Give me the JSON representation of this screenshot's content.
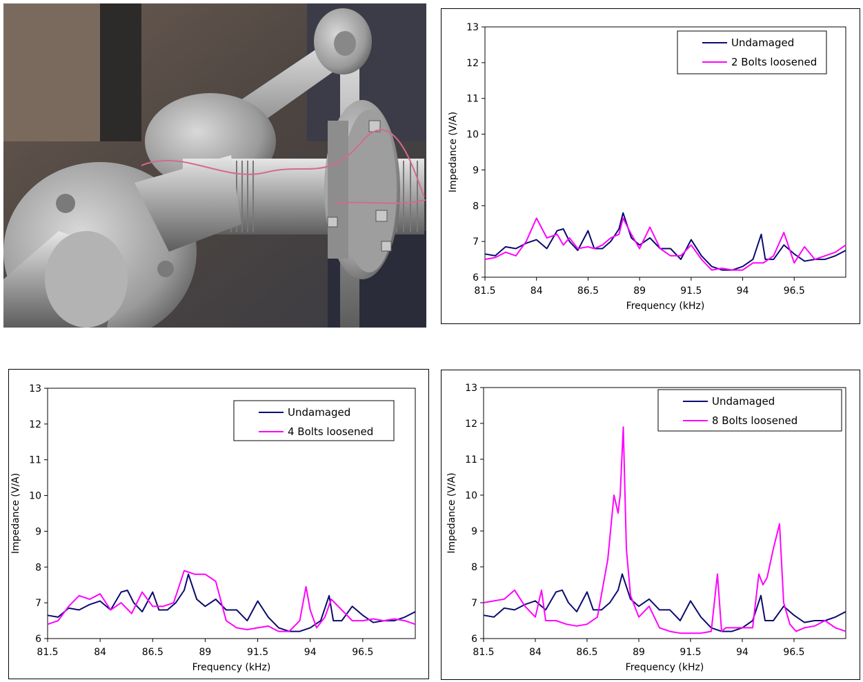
{
  "colors": {
    "undamaged": "#0a0a6e",
    "loosened": "#ff00ff",
    "axis": "#000000"
  },
  "photo": {
    "description": "pipe-flange-assembly"
  },
  "chart_data": [
    {
      "type": "line",
      "title": "",
      "xlabel": "Frequency (kHz)",
      "ylabel": "Impedance (V/A)",
      "xlim": [
        81.5,
        99
      ],
      "ylim": [
        6,
        13
      ],
      "xticks": [
        "81.5",
        "84",
        "86.5",
        "89",
        "91.5",
        "94",
        "96.5"
      ],
      "yticks": [
        "6",
        "7",
        "8",
        "9",
        "10",
        "11",
        "12",
        "13"
      ],
      "legend_position": "top-right",
      "series": [
        {
          "name": "Undamaged",
          "color": "#0a0a6e",
          "x": [
            81.5,
            82,
            82.5,
            83,
            83.5,
            84,
            84.5,
            85,
            85.3,
            85.6,
            86,
            86.5,
            86.8,
            87.2,
            87.6,
            88,
            88.2,
            88.6,
            89,
            89.5,
            90,
            90.5,
            91,
            91.5,
            92,
            92.5,
            93,
            93.5,
            94,
            94.5,
            94.9,
            95.1,
            95.5,
            96,
            96.5,
            97,
            97.5,
            98,
            98.5,
            99
          ],
          "y": [
            6.65,
            6.6,
            6.85,
            6.8,
            6.95,
            7.05,
            6.8,
            7.3,
            7.35,
            7.0,
            6.75,
            7.3,
            6.8,
            6.8,
            7.0,
            7.35,
            7.8,
            7.1,
            6.9,
            7.1,
            6.8,
            6.8,
            6.5,
            7.05,
            6.6,
            6.3,
            6.2,
            6.2,
            6.3,
            6.5,
            7.2,
            6.5,
            6.5,
            6.9,
            6.65,
            6.45,
            6.5,
            6.5,
            6.6,
            6.75
          ]
        },
        {
          "name": "2 Bolts loosened",
          "color": "#ff00ff",
          "x": [
            81.5,
            82,
            82.5,
            83,
            83.5,
            84,
            84.5,
            85,
            85.3,
            85.6,
            86,
            86.5,
            86.8,
            87.2,
            87.6,
            88,
            88.2,
            88.6,
            89,
            89.5,
            90,
            90.5,
            91,
            91.5,
            92,
            92.5,
            93,
            93.5,
            94,
            94.5,
            95,
            95.5,
            96,
            96.5,
            97,
            97.5,
            98,
            98.5,
            99
          ],
          "y": [
            6.5,
            6.55,
            6.7,
            6.6,
            7.0,
            7.65,
            7.1,
            7.2,
            6.9,
            7.1,
            6.8,
            6.85,
            6.8,
            6.9,
            7.1,
            7.2,
            7.65,
            7.2,
            6.8,
            7.4,
            6.8,
            6.6,
            6.6,
            6.9,
            6.5,
            6.2,
            6.25,
            6.2,
            6.2,
            6.4,
            6.4,
            6.6,
            7.25,
            6.4,
            6.85,
            6.5,
            6.6,
            6.7,
            6.9
          ]
        }
      ]
    },
    {
      "type": "line",
      "title": "",
      "xlabel": "Frequency (kHz)",
      "ylabel": "Impedance (V/A)",
      "xlim": [
        81.5,
        99
      ],
      "ylim": [
        6,
        13
      ],
      "xticks": [
        "81.5",
        "84",
        "86.5",
        "89",
        "91.5",
        "94",
        "96.5"
      ],
      "yticks": [
        "6",
        "7",
        "8",
        "9",
        "10",
        "11",
        "12",
        "13"
      ],
      "legend_position": "top-right",
      "series": [
        {
          "name": "Undamaged",
          "color": "#0a0a6e",
          "x": [
            81.5,
            82,
            82.5,
            83,
            83.5,
            84,
            84.5,
            85,
            85.3,
            85.6,
            86,
            86.5,
            86.8,
            87.2,
            87.6,
            88,
            88.2,
            88.6,
            89,
            89.5,
            90,
            90.5,
            91,
            91.5,
            92,
            92.5,
            93,
            93.5,
            94,
            94.5,
            94.9,
            95.1,
            95.5,
            96,
            96.5,
            97,
            97.5,
            98,
            98.5,
            99
          ],
          "y": [
            6.65,
            6.6,
            6.85,
            6.8,
            6.95,
            7.05,
            6.8,
            7.3,
            7.35,
            7.0,
            6.75,
            7.3,
            6.8,
            6.8,
            7.0,
            7.35,
            7.8,
            7.1,
            6.9,
            7.1,
            6.8,
            6.8,
            6.5,
            7.05,
            6.6,
            6.3,
            6.2,
            6.2,
            6.3,
            6.5,
            7.2,
            6.5,
            6.5,
            6.9,
            6.65,
            6.45,
            6.5,
            6.5,
            6.6,
            6.75
          ]
        },
        {
          "name": "4 Bolts loosened",
          "color": "#ff00ff",
          "x": [
            81.5,
            82,
            82.5,
            83,
            83.5,
            84,
            84.5,
            85,
            85.5,
            86,
            86.5,
            87,
            87.5,
            88,
            88.5,
            89,
            89.5,
            90,
            90.5,
            91,
            91.5,
            92,
            92.5,
            93,
            93.5,
            93.8,
            94,
            94.3,
            94.7,
            95,
            95.5,
            96,
            96.5,
            97,
            97.5,
            98,
            98.5,
            99
          ],
          "y": [
            6.4,
            6.5,
            6.9,
            7.2,
            7.1,
            7.25,
            6.8,
            7.0,
            6.7,
            7.3,
            6.9,
            6.9,
            7.0,
            7.9,
            7.8,
            7.8,
            7.6,
            6.5,
            6.3,
            6.25,
            6.3,
            6.35,
            6.2,
            6.2,
            6.5,
            7.45,
            6.8,
            6.3,
            6.6,
            7.1,
            6.8,
            6.5,
            6.5,
            6.55,
            6.5,
            6.55,
            6.5,
            6.4
          ]
        }
      ]
    },
    {
      "type": "line",
      "title": "",
      "xlabel": "Frequency (kHz)",
      "ylabel": "Impedance (V/A)",
      "xlim": [
        81.5,
        99
      ],
      "ylim": [
        6,
        13
      ],
      "xticks": [
        "81.5",
        "84",
        "86.5",
        "89",
        "91.5",
        "94",
        "96.5"
      ],
      "yticks": [
        "6",
        "7",
        "8",
        "9",
        "10",
        "11",
        "12",
        "13"
      ],
      "legend_position": "top-right",
      "series": [
        {
          "name": "Undamaged",
          "color": "#0a0a6e",
          "x": [
            81.5,
            82,
            82.5,
            83,
            83.5,
            84,
            84.5,
            85,
            85.3,
            85.6,
            86,
            86.5,
            86.8,
            87.2,
            87.6,
            88,
            88.2,
            88.6,
            89,
            89.5,
            90,
            90.5,
            91,
            91.5,
            92,
            92.5,
            93,
            93.5,
            94,
            94.5,
            94.9,
            95.1,
            95.5,
            96,
            96.5,
            97,
            97.5,
            98,
            98.5,
            99
          ],
          "y": [
            6.65,
            6.6,
            6.85,
            6.8,
            6.95,
            7.05,
            6.8,
            7.3,
            7.35,
            7.0,
            6.75,
            7.3,
            6.8,
            6.8,
            7.0,
            7.35,
            7.8,
            7.1,
            6.9,
            7.1,
            6.8,
            6.8,
            6.5,
            7.05,
            6.6,
            6.3,
            6.2,
            6.2,
            6.3,
            6.5,
            7.2,
            6.5,
            6.5,
            6.9,
            6.65,
            6.45,
            6.5,
            6.5,
            6.6,
            6.75
          ]
        },
        {
          "name": "8 Bolts loosened",
          "color": "#ff00ff",
          "x": [
            81.5,
            82,
            82.5,
            83,
            83.5,
            84,
            84.3,
            84.5,
            85,
            85.5,
            86,
            86.5,
            87,
            87.5,
            87.8,
            88.0,
            88.1,
            88.25,
            88.4,
            88.6,
            89,
            89.5,
            90,
            90.5,
            91,
            91.5,
            92,
            92.5,
            92.8,
            93,
            93.2,
            93.5,
            94,
            94.5,
            94.8,
            95,
            95.2,
            95.5,
            95.8,
            96,
            96.3,
            96.6,
            97,
            97.5,
            98,
            98.5,
            99
          ],
          "y": [
            7.0,
            7.05,
            7.1,
            7.35,
            6.9,
            6.6,
            7.35,
            6.5,
            6.5,
            6.4,
            6.35,
            6.4,
            6.6,
            8.2,
            10.0,
            9.5,
            10.0,
            11.9,
            8.5,
            7.2,
            6.6,
            6.9,
            6.3,
            6.2,
            6.15,
            6.15,
            6.15,
            6.2,
            7.8,
            6.2,
            6.3,
            6.3,
            6.3,
            6.3,
            7.8,
            7.5,
            7.7,
            8.5,
            9.2,
            7.0,
            6.4,
            6.2,
            6.3,
            6.35,
            6.5,
            6.3,
            6.2
          ]
        }
      ]
    }
  ]
}
